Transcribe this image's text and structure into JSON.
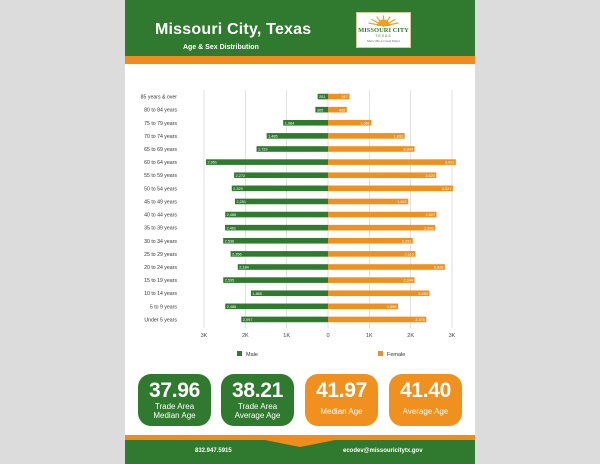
{
  "header": {
    "title": "Missouri City, Texas",
    "subtitle": "Age & Sex Distribution",
    "logo_text": "MISSOURI CITY",
    "logo_sub": "TEXAS",
    "logo_tagline": "Show Me a Great Place"
  },
  "colors": {
    "male": "#2f7a2e",
    "female": "#f0901e",
    "header": "#2f7a2e",
    "accent": "#f08c1e"
  },
  "chart_data": {
    "type": "bar",
    "orientation": "horizontal-population-pyramid",
    "categories": [
      "85 years & over",
      "80 to 84 years",
      "75 to 79 years",
      "70 to 74 years",
      "65 to 69 years",
      "60 to 64 years",
      "55 to 59 years",
      "50 to 54 years",
      "45 to 49 years",
      "40 to 44 years",
      "35 to 39 years",
      "30 to 34 years",
      "25 to 29 years",
      "20 to 24 years",
      "15 to 19 years",
      "10 to 14 years",
      "5 to 9 years",
      "Under 5 years"
    ],
    "series": [
      {
        "name": "Male",
        "values": [
          251,
          305,
          1084,
          1485,
          1729,
          2951,
          2272,
          2329,
          2251,
          2486,
          2491,
          2536,
          2356,
          2184,
          2535,
          1865,
          2486,
          2097
        ],
        "labels": [
          "251",
          "305",
          "1,084",
          "1,485",
          "1,729",
          "2,951",
          "2,272",
          "2,329",
          "2,251",
          "2,486",
          "2,491",
          "2,536",
          "2,356",
          "2,184",
          "2,535",
          "1,865",
          "2,486",
          "2,097"
        ]
      },
      {
        "name": "Female",
        "values": [
          517,
          455,
          1051,
          1855,
          2093,
          3093,
          2620,
          3021,
          1942,
          2627,
          2592,
          2051,
          2115,
          2828,
          2094,
          2453,
          1695,
          2378
        ],
        "labels": [
          "517",
          "455",
          "1,051",
          "1,855",
          "2,093",
          "3,093",
          "2,620",
          "3,021",
          "1,942",
          "2,627",
          "2,592",
          "2,051",
          "2,115",
          "2,828",
          "2,094",
          "2,453",
          "1,695",
          "2,378"
        ]
      }
    ],
    "xlim": [
      -3000,
      3000
    ],
    "xticks": [
      -3000,
      -2000,
      -1000,
      0,
      1000,
      2000,
      3000
    ],
    "xtick_labels": [
      "3K",
      "2K",
      "1K",
      "0",
      "1K",
      "2K",
      "3K"
    ],
    "grid": true,
    "legend_placement": "bottom"
  },
  "stats": [
    {
      "value": "37.96",
      "label_line1": "Trade Area",
      "label_line2": "Median Age"
    },
    {
      "value": "38.21",
      "label_line1": "Trade Area",
      "label_line2": "Average Age"
    },
    {
      "value": "41.97",
      "label_line1": "Median Age"
    },
    {
      "value": "41.40",
      "label_line1": "Average Age"
    }
  ],
  "footer": {
    "phone": "832.947.5915",
    "email": "ecodev@missouricitytx.gov"
  }
}
